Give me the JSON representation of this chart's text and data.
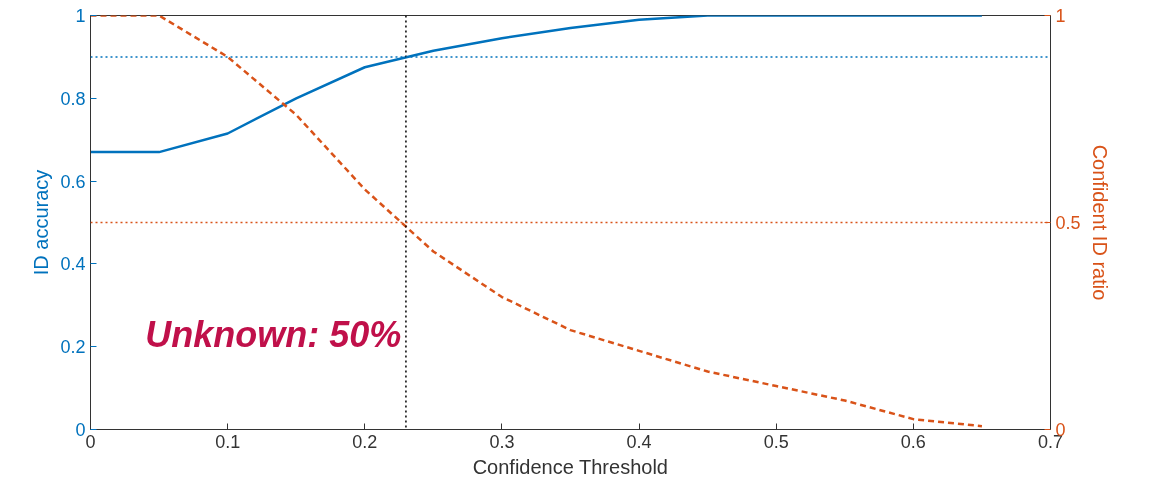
{
  "chart_data": {
    "type": "line",
    "xlabel": "Confidence Threshold",
    "ylabel": "ID accuracy",
    "y2label": "Confident ID ratio",
    "x": [
      0,
      0.05,
      0.1,
      0.15,
      0.2,
      0.25,
      0.3,
      0.35,
      0.4,
      0.45,
      0.5,
      0.55,
      0.6,
      0.65
    ],
    "series": [
      {
        "color": "#0072bd",
        "line_style": "solid",
        "values": [
          0.67,
          0.67,
          0.715,
          0.8,
          0.875,
          0.915,
          0.945,
          0.97,
          0.99,
          1.0,
          1.0,
          1.0,
          1.0,
          1.0
        ]
      },
      {
        "color": "#d95319",
        "line_style": "dashed",
        "axis": "y2",
        "values": [
          1.0,
          1.0,
          0.9,
          0.76,
          0.58,
          0.43,
          0.32,
          0.24,
          0.19,
          0.14,
          0.105,
          0.07,
          0.025,
          0.008
        ]
      }
    ],
    "xlim": [
      0,
      0.7
    ],
    "xticks": [
      0,
      0.1,
      0.2,
      0.3,
      0.4,
      0.5,
      0.6,
      0.7
    ],
    "ylim": [
      0,
      1
    ],
    "yticks": [
      0,
      0.2,
      0.4,
      0.6,
      0.8,
      1
    ],
    "y2lim": [
      0,
      1
    ],
    "y2ticks": [
      0,
      0.5,
      1
    ],
    "ref_lines": [
      {
        "axis": "x",
        "value": 0.23,
        "color": "#000000",
        "line_style": "dotted"
      },
      {
        "axis": "y",
        "value": 0.9,
        "color": "#0072bd",
        "line_style": "dotted"
      },
      {
        "axis": "y2",
        "value": 0.5,
        "color": "#d95319",
        "line_style": "dotted"
      }
    ],
    "annotations": [
      "Unknown: 50%"
    ],
    "grid": false,
    "marker": "none"
  }
}
